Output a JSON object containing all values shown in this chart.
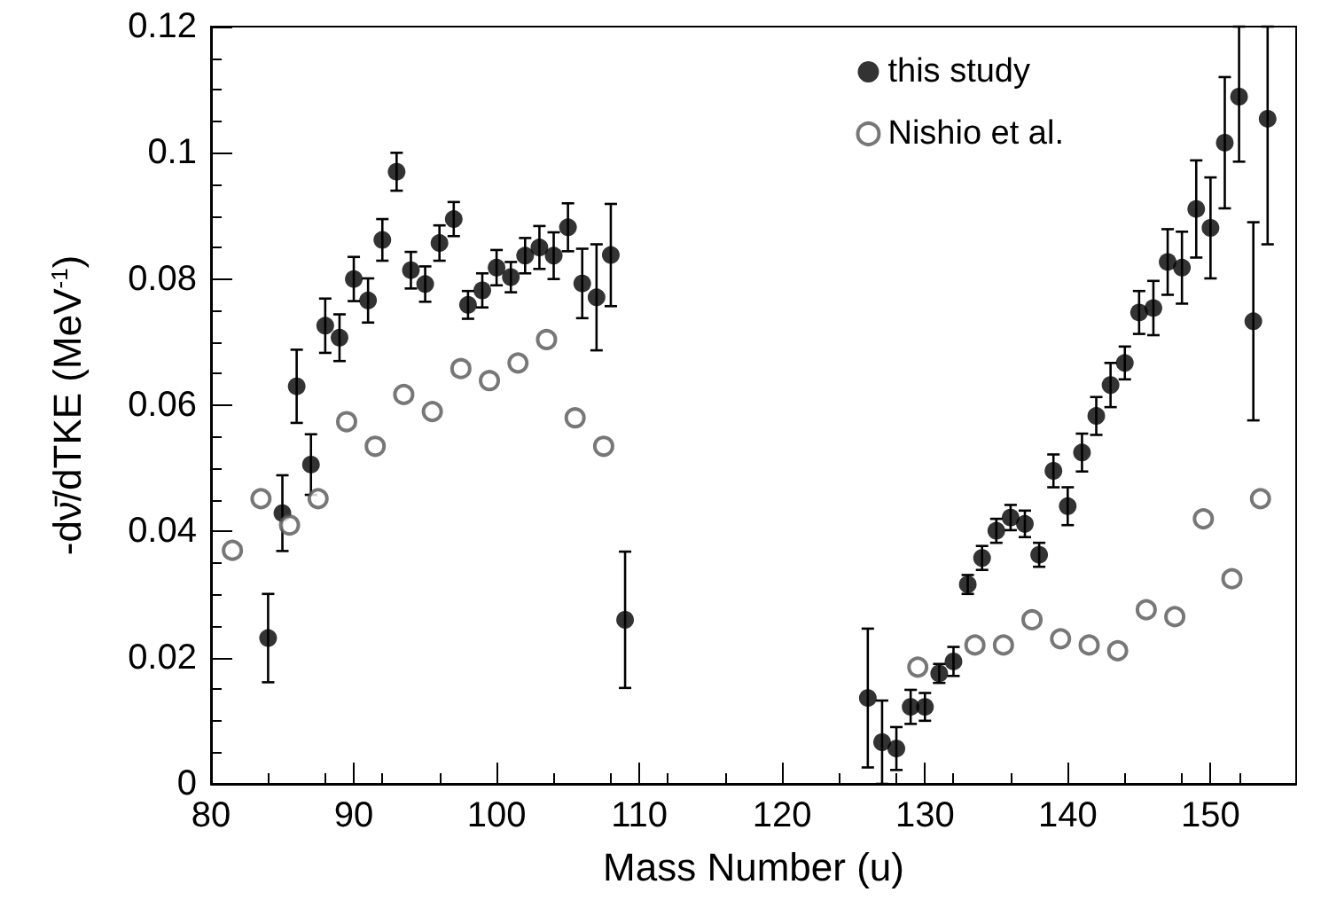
{
  "chart_data": {
    "type": "scatter",
    "xlabel": "Mass Number (u)",
    "ylabel": "-dν̄/dTKE (MeV$^{-1}$)",
    "xlim": [
      80,
      156
    ],
    "xticks": [
      80,
      90,
      100,
      110,
      120,
      130,
      140,
      150
    ],
    "ylim": [
      0,
      0.12
    ],
    "yticks": [
      0,
      0.02,
      0.04,
      0.06,
      0.08,
      0.1,
      0.12
    ],
    "grid": false,
    "legend": "top right",
    "series": [
      {
        "name": "this study",
        "color": "#000000",
        "marker": "circle",
        "x": [
          84,
          85,
          86,
          87,
          88,
          89,
          90,
          91,
          92,
          93,
          94,
          95,
          96,
          97,
          98,
          99,
          100,
          101,
          102,
          103,
          104,
          105,
          106,
          107,
          108,
          109,
          126,
          127,
          128,
          129,
          130,
          131,
          132,
          133,
          134,
          135,
          136,
          137,
          138,
          139,
          140,
          141,
          142,
          143,
          144,
          145,
          146,
          147,
          148,
          149,
          150,
          151,
          152,
          153,
          154
        ],
        "values": [
          0.0231,
          0.0429,
          0.063,
          0.0506,
          0.0726,
          0.0707,
          0.08,
          0.0766,
          0.0862,
          0.097,
          0.0814,
          0.0792,
          0.0857,
          0.0895,
          0.0759,
          0.0782,
          0.0818,
          0.0803,
          0.0837,
          0.085,
          0.0837,
          0.0882,
          0.0793,
          0.0771,
          0.0838,
          0.026,
          0.0136,
          0.0066,
          0.0056,
          0.0122,
          0.0122,
          0.0175,
          0.0194,
          0.0316,
          0.0358,
          0.0401,
          0.0422,
          0.0412,
          0.0363,
          0.0496,
          0.044,
          0.0525,
          0.0583,
          0.0632,
          0.0667,
          0.0747,
          0.0754,
          0.0827,
          0.0818,
          0.0911,
          0.0881,
          0.1016,
          0.1089,
          0.0733,
          0.1054
        ],
        "errors": [
          0.007,
          0.006,
          0.0058,
          0.0048,
          0.0043,
          0.0037,
          0.0035,
          0.0035,
          0.0033,
          0.003,
          0.0029,
          0.0028,
          0.0028,
          0.0027,
          0.0022,
          0.0027,
          0.0028,
          0.0024,
          0.0028,
          0.0034,
          0.0037,
          0.0038,
          0.0055,
          0.0084,
          0.0081,
          0.0108,
          0.011,
          0.0066,
          0.0034,
          0.0027,
          0.0022,
          0.0015,
          0.0023,
          0.0015,
          0.0019,
          0.0019,
          0.002,
          0.0021,
          0.0019,
          0.0026,
          0.003,
          0.003,
          0.003,
          0.0035,
          0.0026,
          0.0034,
          0.0043,
          0.0052,
          0.0057,
          0.0077,
          0.008,
          0.0104,
          [
            0.0986,
            0.12
          ],
          0.0157,
          [
            0.0855,
            0.12
          ]
        ]
      },
      {
        "name": "Nishio et al.",
        "color": "#555555",
        "marker": "open circle",
        "x": [
          81.5,
          83.5,
          85.5,
          87.5,
          89.5,
          91.5,
          93.5,
          95.5,
          97.5,
          99.5,
          101.5,
          103.5,
          105.5,
          107.5,
          129.5,
          133.5,
          135.5,
          137.5,
          139.5,
          141.5,
          143.5,
          145.5,
          147.5,
          149.5,
          151.5,
          153.5
        ],
        "values": [
          0.037,
          0.0452,
          0.041,
          0.0452,
          0.0574,
          0.0535,
          0.0617,
          0.059,
          0.0658,
          0.0639,
          0.0667,
          0.0704,
          0.058,
          0.0535,
          0.0185,
          0.022,
          0.022,
          0.026,
          0.023,
          0.022,
          0.0211,
          0.0276,
          0.0265,
          0.042,
          0.0325,
          0.0452
        ]
      }
    ]
  }
}
